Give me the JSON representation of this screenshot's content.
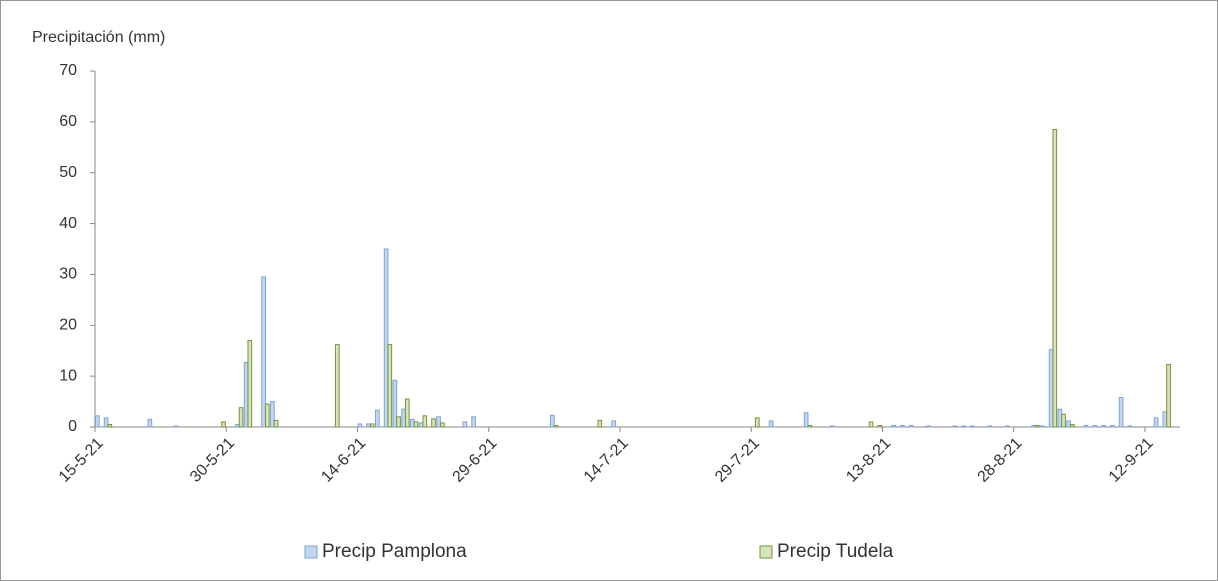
{
  "chart_data": {
    "type": "bar",
    "title": "Precipitación (mm)",
    "categories": [
      "15-5-21",
      null,
      null,
      null,
      null,
      null,
      null,
      null,
      null,
      null,
      null,
      null,
      null,
      null,
      null,
      "30-5-21",
      null,
      null,
      null,
      null,
      null,
      null,
      null,
      null,
      null,
      null,
      null,
      null,
      null,
      null,
      "14-6-21",
      null,
      null,
      null,
      null,
      null,
      null,
      null,
      null,
      null,
      null,
      null,
      null,
      null,
      null,
      "29-6-21",
      null,
      null,
      null,
      null,
      null,
      null,
      null,
      null,
      null,
      null,
      null,
      null,
      null,
      null,
      "14-7-21",
      null,
      null,
      null,
      null,
      null,
      null,
      null,
      null,
      null,
      null,
      null,
      null,
      null,
      null,
      "29-7-21",
      null,
      null,
      null,
      null,
      null,
      null,
      null,
      null,
      null,
      null,
      null,
      null,
      null,
      null,
      "13-8-21",
      null,
      null,
      null,
      null,
      null,
      null,
      null,
      null,
      null,
      null,
      null,
      null,
      null,
      null,
      "28-8-21",
      null,
      null,
      null,
      null,
      null,
      null,
      null,
      null,
      null,
      null,
      null,
      null,
      null,
      null,
      "12-9-21",
      null,
      null,
      null
    ],
    "series": [
      {
        "name": "Precip Pamplona",
        "color": "#c5d7ef",
        "stroke": "#7fa3d6",
        "values": [
          2.2,
          1.8,
          0,
          0,
          0,
          0,
          1.5,
          0,
          0,
          0.2,
          0,
          0,
          0,
          0,
          0,
          0,
          0.5,
          12.7,
          0,
          29.5,
          5,
          0,
          0,
          0,
          0,
          0,
          0,
          0,
          0,
          0,
          0.6,
          0.6,
          3.3,
          35,
          9.2,
          3.5,
          1.5,
          0.8,
          0,
          2,
          0,
          0,
          1,
          2,
          0,
          0,
          0,
          0,
          0,
          0,
          0,
          0,
          2.3,
          0,
          0,
          0,
          0,
          0,
          0,
          1.2,
          0,
          0,
          0,
          0,
          0,
          0,
          0,
          0,
          0,
          0,
          0,
          0,
          0,
          0,
          0,
          0,
          0,
          1.2,
          0,
          0,
          0,
          2.8,
          0,
          0,
          0.2,
          0,
          0,
          0,
          0,
          0,
          0,
          0.3,
          0.3,
          0.3,
          0,
          0.2,
          0,
          0,
          0.2,
          0.2,
          0.2,
          0,
          0.2,
          0,
          0.2,
          0,
          0,
          0.3,
          0.2,
          15.2,
          3.5,
          1.2,
          0,
          0.3,
          0.3,
          0.3,
          0.3,
          5.8,
          0.2,
          0,
          0,
          1.8,
          3,
          0
        ]
      },
      {
        "name": "Precip Tudela",
        "color": "#d7e4bd",
        "stroke": "#77933c",
        "values": [
          0,
          0.5,
          0,
          0,
          0,
          0,
          0,
          0,
          0,
          0,
          0,
          0,
          0,
          0,
          1,
          0,
          3.8,
          17,
          0,
          4.5,
          1.3,
          0,
          0,
          0,
          0,
          0,
          0,
          16.2,
          0,
          0,
          0,
          0.6,
          0,
          16.2,
          2,
          5.5,
          1,
          2.2,
          1.6,
          0.8,
          0,
          0,
          0,
          0,
          0,
          0,
          0,
          0,
          0,
          0,
          0,
          0,
          0.3,
          0,
          0,
          0,
          0,
          1.3,
          0,
          0,
          0,
          0,
          0,
          0,
          0,
          0,
          0,
          0,
          0,
          0,
          0,
          0,
          0,
          0,
          0,
          1.8,
          0,
          0,
          0,
          0,
          0,
          0.3,
          0,
          0,
          0,
          0,
          0,
          0,
          1,
          0.3,
          0,
          0,
          0,
          0,
          0,
          0,
          0,
          0,
          0,
          0,
          0,
          0,
          0,
          0,
          0,
          0,
          0,
          0.3,
          0,
          58.5,
          2.5,
          0.5,
          0,
          0,
          0,
          0,
          0,
          0,
          0,
          0,
          0,
          0,
          12.3,
          0
        ]
      }
    ],
    "ylim": [
      0,
      70
    ],
    "yticks": [
      0,
      10,
      20,
      30,
      40,
      50,
      60,
      70
    ],
    "grid": false
  }
}
